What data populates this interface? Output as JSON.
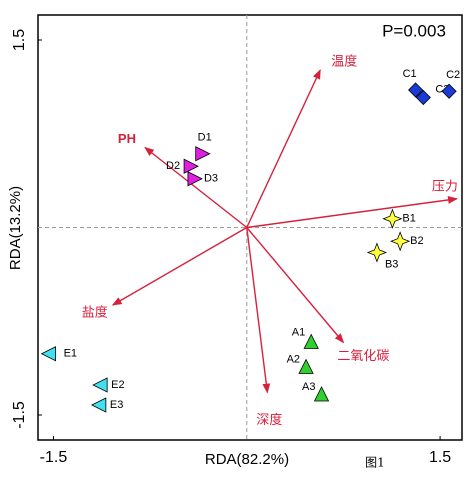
{
  "chart_data": {
    "type": "biplot",
    "annotation": "P=0.003",
    "caption": "图1",
    "xlabel": "RDA(82.2%)",
    "ylabel": "RDA(13.2%)",
    "xlim": [
      -1.62,
      1.67
    ],
    "ylim": [
      -1.7,
      1.7
    ],
    "xticks": [
      -1.5,
      1.5
    ],
    "yticks": [
      -1.5,
      1.5
    ],
    "series": [
      {
        "marker": "diamond",
        "color": "#1a3bd6",
        "labels": [
          "C1",
          "C3",
          "C2"
        ],
        "x": [
          1.31,
          1.37,
          1.57
        ],
        "y": [
          1.1,
          1.04,
          1.09
        ]
      },
      {
        "marker": "triangle-right",
        "color": "#e020e0",
        "labels": [
          "D1",
          "D2",
          "D3"
        ],
        "x": [
          -0.35,
          -0.44,
          -0.41
        ],
        "y": [
          0.59,
          0.49,
          0.39
        ]
      },
      {
        "marker": "star",
        "color": "#ffff40",
        "labels": [
          "B1",
          "B2",
          "B3"
        ],
        "x": [
          1.13,
          1.19,
          1.01
        ],
        "y": [
          0.07,
          -0.11,
          -0.2
        ]
      },
      {
        "marker": "triangle-up",
        "color": "#30d030",
        "labels": [
          "A1",
          "A2",
          "A3"
        ],
        "x": [
          0.5,
          0.46,
          0.58
        ],
        "y": [
          -0.92,
          -1.12,
          -1.34
        ]
      },
      {
        "marker": "triangle-left",
        "color": "#40e0f0",
        "labels": [
          "E1",
          "E2",
          "E3"
        ],
        "x": [
          -1.53,
          -1.13,
          -1.14
        ],
        "y": [
          -1.01,
          -1.26,
          -1.42
        ]
      }
    ],
    "vectors": {
      "color": "#d6203c",
      "names": [
        "温度",
        "PH",
        "压力",
        "盐度",
        "二氧化碳",
        "深度"
      ],
      "x": [
        0.57,
        -0.79,
        1.63,
        -1.04,
        0.75,
        0.16
      ],
      "y": [
        1.26,
        0.64,
        0.23,
        -0.62,
        -0.92,
        -1.32
      ]
    }
  }
}
